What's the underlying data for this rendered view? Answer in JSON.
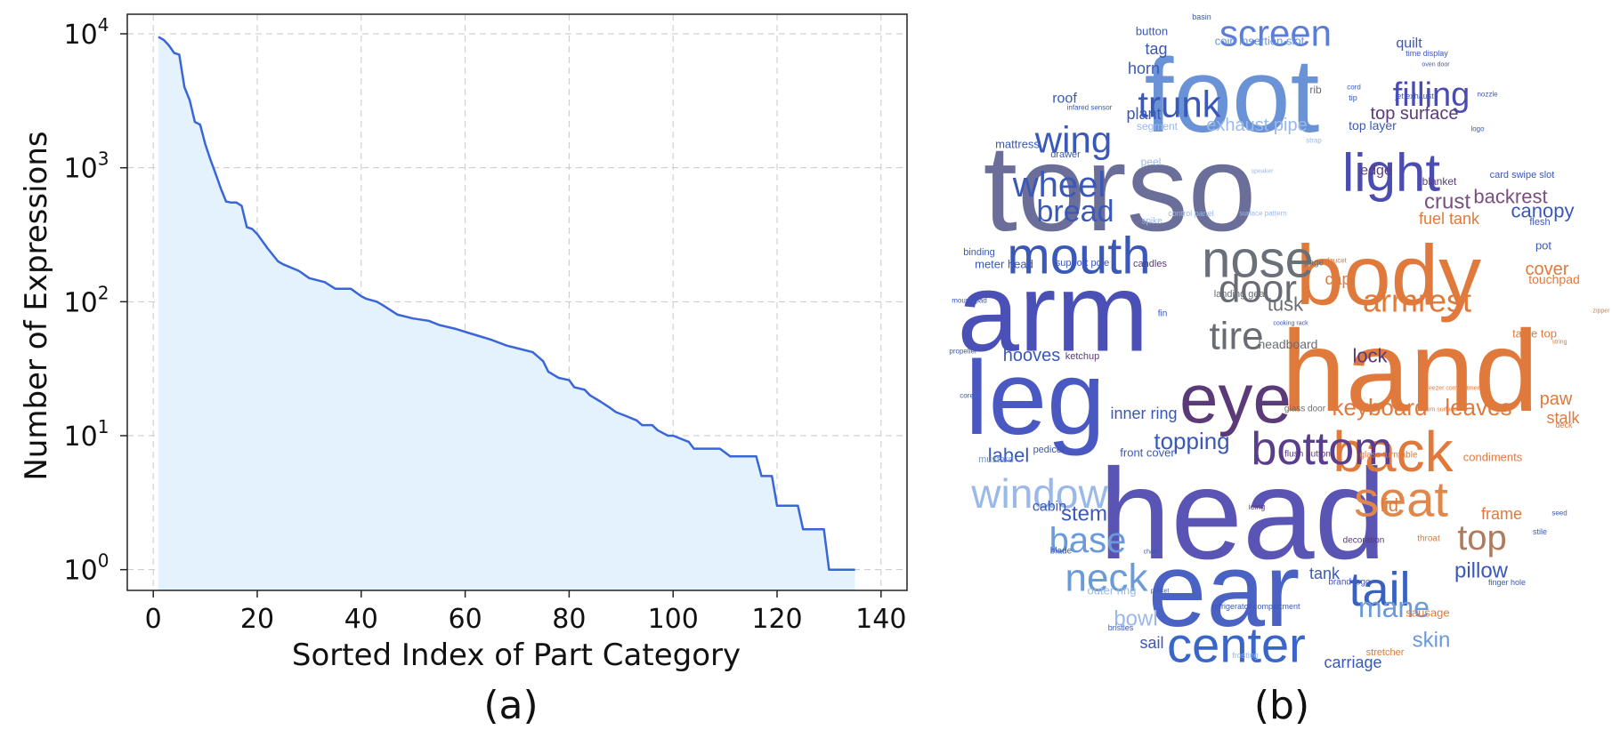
{
  "colors": {
    "line": "#3a66d8",
    "fill": "#e3f2fc",
    "grid": "#c8c8c8",
    "axis": "#222222"
  },
  "panels": {
    "a_label": "(a)",
    "b_label": "(b)"
  },
  "chart_data": {
    "type": "area",
    "xlabel": "Sorted Index of Part Category",
    "ylabel": "Number of Expressions",
    "yscale": "log",
    "xlim": [
      -5,
      145
    ],
    "ylim": [
      0.7,
      14000
    ],
    "grid": true,
    "x_ticks": [
      "0",
      "20",
      "40",
      "60",
      "80",
      "100",
      "120",
      "140"
    ],
    "y_ticks": [
      {
        "value": 1,
        "base": "10",
        "exp": "0"
      },
      {
        "value": 10,
        "base": "10",
        "exp": "1"
      },
      {
        "value": 100,
        "base": "10",
        "exp": "2"
      },
      {
        "value": 1000,
        "base": "10",
        "exp": "3"
      },
      {
        "value": 10000,
        "base": "10",
        "exp": "4"
      }
    ],
    "series": [
      {
        "x": [
          1,
          2,
          3,
          4,
          5,
          6,
          7,
          8,
          9,
          10,
          11,
          12,
          13,
          14,
          15,
          16,
          17,
          18,
          19,
          20,
          22,
          24,
          25,
          28,
          30,
          33,
          35,
          38,
          40,
          41,
          43,
          44,
          47,
          50,
          53,
          55,
          58,
          61,
          63,
          65,
          68,
          70,
          73,
          75,
          76,
          78,
          80,
          81,
          83,
          84,
          86,
          88,
          89,
          91,
          93,
          94,
          96,
          97,
          99,
          100,
          103,
          104,
          106,
          109,
          111,
          113,
          114,
          116,
          117,
          119,
          120,
          122,
          124,
          125,
          127,
          129,
          130,
          132,
          134,
          135
        ],
        "y": [
          9500,
          9000,
          8200,
          7200,
          7000,
          4000,
          3200,
          2200,
          2100,
          1500,
          1150,
          900,
          700,
          560,
          550,
          550,
          520,
          360,
          350,
          320,
          250,
          200,
          190,
          170,
          150,
          140,
          125,
          125,
          110,
          105,
          100,
          95,
          80,
          75,
          72,
          67,
          63,
          58,
          55,
          52,
          47,
          45,
          42,
          36,
          30,
          27,
          26,
          23,
          22,
          20,
          18,
          16,
          15,
          14,
          13,
          12,
          12,
          11,
          10,
          10,
          9,
          8,
          8,
          8,
          7,
          7,
          7,
          7,
          5,
          5,
          3,
          3,
          3,
          2,
          2,
          2,
          1,
          1,
          1,
          1
        ]
      }
    ]
  },
  "word_cloud": [
    {
      "text": "torso",
      "size": 138,
      "color": "#6b6e98"
    },
    {
      "text": "head",
      "size": 145,
      "color": "#5a54b4"
    },
    {
      "text": "hand",
      "size": 130,
      "color": "#e07a3c"
    },
    {
      "text": "arm",
      "size": 125,
      "color": "#4a50b6"
    },
    {
      "text": "foot",
      "size": 118,
      "color": "#6a92d6"
    },
    {
      "text": "leg",
      "size": 118,
      "color": "#4a58c2"
    },
    {
      "text": "ear",
      "size": 118,
      "color": "#4a62c4"
    },
    {
      "text": "body",
      "size": 96,
      "color": "#e07a3c"
    },
    {
      "text": "eye",
      "size": 78,
      "color": "#5a3a78"
    },
    {
      "text": "back",
      "size": 64,
      "color": "#e07a3c"
    },
    {
      "text": "light",
      "size": 60,
      "color": "#4a4cb0"
    },
    {
      "text": "nose",
      "size": 58,
      "color": "#6a7078"
    },
    {
      "text": "mouth",
      "size": 58,
      "color": "#3a58b8"
    },
    {
      "text": "center",
      "size": 56,
      "color": "#3a66c8"
    },
    {
      "text": "seat",
      "size": 56,
      "color": "#e0884c"
    },
    {
      "text": "bottom",
      "size": 52,
      "color": "#5a3e8e"
    },
    {
      "text": "tail",
      "size": 54,
      "color": "#3a60c0"
    },
    {
      "text": "window",
      "size": 46,
      "color": "#9ab8e8"
    },
    {
      "text": "neck",
      "size": 44,
      "color": "#6a9ad8"
    },
    {
      "text": "tire",
      "size": 44,
      "color": "#6a6c74"
    },
    {
      "text": "door",
      "size": 44,
      "color": "#6a6c74"
    },
    {
      "text": "screen",
      "size": 42,
      "color": "#5a7ed8"
    },
    {
      "text": "wing",
      "size": 42,
      "color": "#3a58b8"
    },
    {
      "text": "trunk",
      "size": 42,
      "color": "#3a58b8"
    },
    {
      "text": "wheel",
      "size": 40,
      "color": "#3a58b8"
    },
    {
      "text": "top",
      "size": 40,
      "color": "#b07a5c"
    },
    {
      "text": "base",
      "size": 40,
      "color": "#6a9ad8"
    },
    {
      "text": "filling",
      "size": 38,
      "color": "#4a4cb0"
    },
    {
      "text": "armrest",
      "size": 36,
      "color": "#e07a3c"
    },
    {
      "text": "bread",
      "size": 34,
      "color": "#3a58b8"
    },
    {
      "text": "mane",
      "size": 32,
      "color": "#6a9ad8"
    },
    {
      "text": "keyboard",
      "size": 26,
      "color": "#e07a3c"
    },
    {
      "text": "leaves",
      "size": 26,
      "color": "#e07a3c"
    },
    {
      "text": "topping",
      "size": 26,
      "color": "#3a58b8"
    },
    {
      "text": "stem",
      "size": 24,
      "color": "#3a58b8"
    },
    {
      "text": "crust",
      "size": 24,
      "color": "#7a4e7e"
    },
    {
      "text": "backrest",
      "size": 22,
      "color": "#7a4e7e"
    },
    {
      "text": "canopy",
      "size": 22,
      "color": "#3a58b8"
    },
    {
      "text": "pillow",
      "size": 24,
      "color": "#3a58b8"
    },
    {
      "text": "bowl",
      "size": 24,
      "color": "#9ab8e8"
    },
    {
      "text": "skin",
      "size": 24,
      "color": "#6a9ad8"
    },
    {
      "text": "lock",
      "size": 22,
      "color": "#5a3a78"
    },
    {
      "text": "label",
      "size": 22,
      "color": "#3a58b8"
    },
    {
      "text": "tusk",
      "size": 22,
      "color": "#6a6c74"
    },
    {
      "text": "hooves",
      "size": 20,
      "color": "#3a58b8"
    },
    {
      "text": "cover",
      "size": 20,
      "color": "#e07a3c"
    },
    {
      "text": "paw",
      "size": 20,
      "color": "#e07a3c"
    },
    {
      "text": "frame",
      "size": 18,
      "color": "#e07a3c"
    },
    {
      "text": "lid",
      "size": 20,
      "color": "#e07a3c"
    },
    {
      "text": "cap",
      "size": 18,
      "color": "#e07a3c"
    },
    {
      "text": "carriage",
      "size": 18,
      "color": "#3a58b8"
    },
    {
      "text": "tank",
      "size": 18,
      "color": "#3a58b8"
    },
    {
      "text": "sail",
      "size": 18,
      "color": "#3a58b8"
    },
    {
      "text": "stalk",
      "size": 18,
      "color": "#e07a3c"
    },
    {
      "text": "top surface",
      "size": 20,
      "color": "#5a3a78"
    },
    {
      "text": "exhaust pipe",
      "size": 20,
      "color": "#9ab8e8"
    },
    {
      "text": "fuel tank",
      "size": 18,
      "color": "#e07a3c"
    },
    {
      "text": "inner ring",
      "size": 18,
      "color": "#3a58b8"
    },
    {
      "text": "cabin",
      "size": 16,
      "color": "#3a58b8"
    },
    {
      "text": "edge",
      "size": 16,
      "color": "#5a3a78"
    },
    {
      "text": "plant",
      "size": 18,
      "color": "#3a58b8"
    },
    {
      "text": "horn",
      "size": 18,
      "color": "#3a58b8"
    },
    {
      "text": "tag",
      "size": 18,
      "color": "#3a58b8"
    },
    {
      "text": "roof",
      "size": 16,
      "color": "#3a58b8"
    },
    {
      "text": "quilt",
      "size": 16,
      "color": "#3a58b8"
    },
    {
      "text": "headboard",
      "size": 14,
      "color": "#6a6c74"
    },
    {
      "text": "top layer",
      "size": 14,
      "color": "#3a58b8"
    },
    {
      "text": "touchpad",
      "size": 14,
      "color": "#e07a3c"
    },
    {
      "text": "table top",
      "size": 13,
      "color": "#e07a3c"
    },
    {
      "text": "pot",
      "size": 13,
      "color": "#3a58b8"
    },
    {
      "text": "condiments",
      "size": 13,
      "color": "#e07a3c"
    },
    {
      "text": "sausage",
      "size": 13,
      "color": "#e07a3c"
    },
    {
      "text": "stretcher",
      "size": 11,
      "color": "#e07a3c"
    },
    {
      "text": "outer ring",
      "size": 13,
      "color": "#9ab8e8"
    },
    {
      "text": "front cover",
      "size": 13,
      "color": "#3a58b8"
    },
    {
      "text": "mustard",
      "size": 11,
      "color": "#6a9ad8"
    },
    {
      "text": "pedicel",
      "size": 11,
      "color": "#3a58b8"
    },
    {
      "text": "button",
      "size": 13,
      "color": "#3a58b8"
    },
    {
      "text": "coin insertion slot",
      "size": 13,
      "color": "#6a92d6"
    },
    {
      "text": "mattress",
      "size": 13,
      "color": "#3a58b8"
    },
    {
      "text": "drawer",
      "size": 11,
      "color": "#3a58b8"
    },
    {
      "text": "segment",
      "size": 12,
      "color": "#9ab8e8"
    },
    {
      "text": "rib",
      "size": 12,
      "color": "#6a6c74"
    },
    {
      "text": "blanket",
      "size": 12,
      "color": "#5a3a78"
    },
    {
      "text": "card swipe slot",
      "size": 11,
      "color": "#3a58b8"
    },
    {
      "text": "flesh",
      "size": 11,
      "color": "#3a58b8"
    },
    {
      "text": "binding",
      "size": 11,
      "color": "#3a58b8"
    },
    {
      "text": "meter head",
      "size": 13,
      "color": "#3a58b8"
    },
    {
      "text": "support pole",
      "size": 11,
      "color": "#3a58b8"
    },
    {
      "text": "candles",
      "size": 11,
      "color": "#5a3a78"
    },
    {
      "text": "landing gear",
      "size": 11,
      "color": "#6a6c74"
    },
    {
      "text": "peel",
      "size": 12,
      "color": "#9ab8e8"
    },
    {
      "text": "ketchup",
      "size": 11,
      "color": "#5a3a78"
    },
    {
      "text": "glass door",
      "size": 10,
      "color": "#6a6c74"
    },
    {
      "text": "flush button",
      "size": 10,
      "color": "#5a3a78"
    },
    {
      "text": "glass turntable",
      "size": 10,
      "color": "#e07a3c"
    },
    {
      "text": "decoration",
      "size": 10,
      "color": "#5a3a78"
    },
    {
      "text": "throat",
      "size": 10,
      "color": "#e07a3c"
    },
    {
      "text": "brand logo",
      "size": 10,
      "color": "#3a58b8"
    },
    {
      "text": "finger hole",
      "size": 9,
      "color": "#3a58b8"
    },
    {
      "text": "refrigerator compartment",
      "size": 9,
      "color": "#3a58b8"
    },
    {
      "text": "frosting",
      "size": 9,
      "color": "#9ab8e8"
    },
    {
      "text": "bristles",
      "size": 9,
      "color": "#3a58b8"
    },
    {
      "text": "blade",
      "size": 10,
      "color": "#3a58b8"
    },
    {
      "text": "icing",
      "size": 9,
      "color": "#5a3a78"
    },
    {
      "text": "control panel",
      "size": 9,
      "color": "#9ab8e8"
    },
    {
      "text": "surface pattern",
      "size": 8,
      "color": "#9ab8e8"
    },
    {
      "text": "spike",
      "size": 10,
      "color": "#9ab8e8"
    },
    {
      "text": "fin",
      "size": 10,
      "color": "#3a58b8"
    },
    {
      "text": "page",
      "size": 10,
      "color": "#6a6c74"
    },
    {
      "text": "faucet",
      "size": 8,
      "color": "#e07a3c"
    },
    {
      "text": "basin",
      "size": 9,
      "color": "#3a58b8"
    },
    {
      "text": "time display",
      "size": 9,
      "color": "#3a58b8"
    },
    {
      "text": "oven door",
      "size": 7,
      "color": "#3a58b8"
    },
    {
      "text": "jet exhaust",
      "size": 9,
      "color": "#3a58b8"
    },
    {
      "text": "nozzle",
      "size": 8,
      "color": "#3a58b8"
    },
    {
      "text": "tip",
      "size": 9,
      "color": "#3a58b8"
    },
    {
      "text": "cord",
      "size": 8,
      "color": "#3a58b8"
    },
    {
      "text": "logo",
      "size": 8,
      "color": "#3a58b8"
    },
    {
      "text": "infared sensor",
      "size": 8,
      "color": "#3a58b8"
    },
    {
      "text": "strap",
      "size": 8,
      "color": "#9ab8e8"
    },
    {
      "text": "speaker",
      "size": 7,
      "color": "#9ab8e8"
    },
    {
      "text": "mouse pad",
      "size": 8,
      "color": "#3a58b8"
    },
    {
      "text": "propeller",
      "size": 8,
      "color": "#3a58b8"
    },
    {
      "text": "core",
      "size": 8,
      "color": "#3a58b8"
    },
    {
      "text": "cooking rack",
      "size": 7,
      "color": "#3a58b8"
    },
    {
      "text": "freezer compartment",
      "size": 7,
      "color": "#e07a3c"
    },
    {
      "text": "bottom surface",
      "size": 7,
      "color": "#e07a3c"
    },
    {
      "text": "deck",
      "size": 9,
      "color": "#e07a3c"
    },
    {
      "text": "seed",
      "size": 8,
      "color": "#3a58b8"
    },
    {
      "text": "stile",
      "size": 9,
      "color": "#3a58b8"
    },
    {
      "text": "chain",
      "size": 7,
      "color": "#3a58b8"
    },
    {
      "text": "pocket",
      "size": 7,
      "color": "#3a58b8"
    },
    {
      "text": "string",
      "size": 7,
      "color": "#e07a3c"
    },
    {
      "text": "zipper",
      "size": 7,
      "color": "#e07a3c"
    }
  ]
}
